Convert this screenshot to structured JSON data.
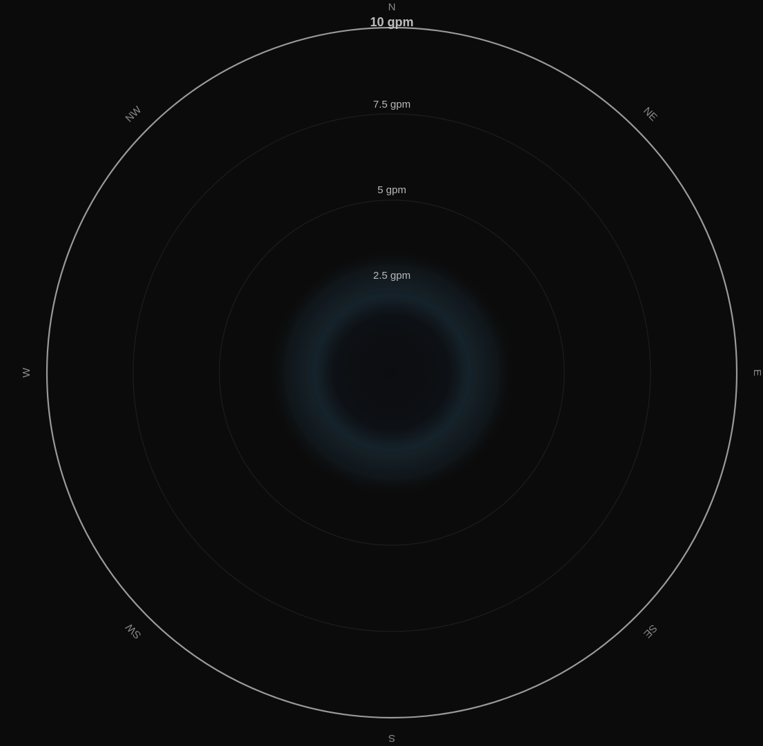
{
  "chart_data": {
    "type": "polar",
    "title": "",
    "top_label": "10 gpm",
    "angle_ticks": [
      "N",
      "NE",
      "E",
      "SE",
      "S",
      "SW",
      "W",
      "NW"
    ],
    "radial_ticks": [
      "7.5 gpm",
      "5 gpm",
      "2.5 gpm"
    ],
    "grid": true,
    "colors": {
      "background": "#0b0b0b",
      "outer_ring": "#9a9a9a",
      "inner_glow": "#16232a",
      "grid": "#1d1d1d"
    }
  }
}
